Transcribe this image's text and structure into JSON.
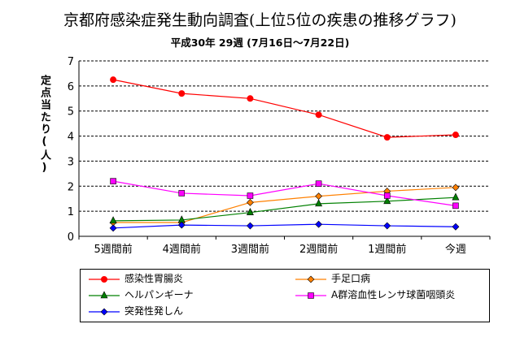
{
  "chart_data": {
    "type": "line",
    "title": "京都府感染症発生動向調査(上位5位の疾患の推移グラフ)",
    "subtitle": "平成30年 29週 (7月16日～7月22日)",
    "ylabel": "定点当たり(人)",
    "xlabel": "",
    "categories": [
      "5週間前",
      "4週間前",
      "3週間前",
      "2週間前",
      "1週間前",
      "今週"
    ],
    "ylim": [
      0,
      7
    ],
    "yticks": [
      "0",
      "1",
      "2",
      "3",
      "4",
      "5",
      "6",
      "7"
    ],
    "grid": "dashed horizontal",
    "legend_position": "bottom",
    "series": [
      {
        "name": "感染性胃腸炎",
        "color": "#ff0000",
        "marker": "circle",
        "values": [
          6.25,
          5.7,
          5.5,
          4.85,
          3.95,
          4.05
        ]
      },
      {
        "name": "手足口病",
        "color": "#ff8000",
        "marker": "diamond",
        "values": [
          0.55,
          0.55,
          1.35,
          1.6,
          1.8,
          1.95
        ]
      },
      {
        "name": "ヘルパンギーナ",
        "color": "#008000",
        "marker": "triangle",
        "values": [
          0.62,
          0.65,
          0.95,
          1.3,
          1.4,
          1.55
        ]
      },
      {
        "name": "A群溶血性レンサ球菌咽頭炎",
        "color": "#ff00ff",
        "marker": "square",
        "values": [
          2.2,
          1.72,
          1.62,
          2.1,
          1.62,
          1.22
        ]
      },
      {
        "name": "突発性発しん",
        "color": "#0000ff",
        "marker": "diamond",
        "values": [
          0.33,
          0.45,
          0.42,
          0.48,
          0.42,
          0.38
        ]
      }
    ]
  }
}
